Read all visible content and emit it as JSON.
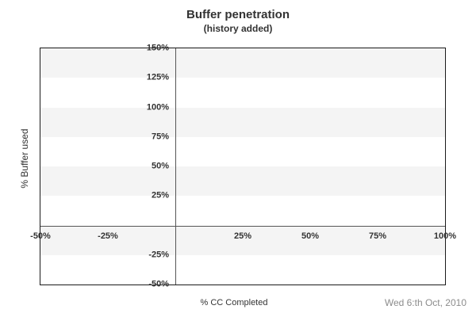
{
  "header": {
    "title": "Buffer penetration",
    "subtitle": "(history added)"
  },
  "footer": {
    "date": "Wed 6:th Oct, 2010"
  },
  "chart_data": {
    "type": "scatter",
    "title": "Buffer penetration",
    "subtitle": "(history added)",
    "xlabel": "% CC Completed",
    "ylabel": "% Buffer used",
    "xlim": [
      -50,
      100
    ],
    "ylim": [
      -50,
      150
    ],
    "x_ticks": [
      {
        "value": -50,
        "label": "-50%"
      },
      {
        "value": -25,
        "label": "-25%"
      },
      {
        "value": 25,
        "label": "25%"
      },
      {
        "value": 50,
        "label": "50%"
      },
      {
        "value": 75,
        "label": "75%"
      },
      {
        "value": 100,
        "label": "100%"
      }
    ],
    "y_ticks": [
      {
        "value": 150,
        "label": "150%"
      },
      {
        "value": 125,
        "label": "125%"
      },
      {
        "value": 100,
        "label": "100%"
      },
      {
        "value": 75,
        "label": "75%"
      },
      {
        "value": 50,
        "label": "50%"
      },
      {
        "value": 25,
        "label": "25%"
      },
      {
        "value": -25,
        "label": "-25%"
      },
      {
        "value": -50,
        "label": "-50%"
      }
    ],
    "grid_bands": {
      "start": 150,
      "step": 25,
      "colors": [
        "#f4f4f4",
        "#ffffff"
      ]
    },
    "axis_lines": {
      "x_zero_at": 0,
      "y_zero_at": 0,
      "color": "#555555"
    },
    "series": [],
    "legend": "none",
    "colors": {
      "plot_border": "#1a1a1a",
      "band_gray": "#f4f4f4",
      "text": "#333333",
      "date_text": "#8c8c8c",
      "background": "#ffffff"
    }
  }
}
